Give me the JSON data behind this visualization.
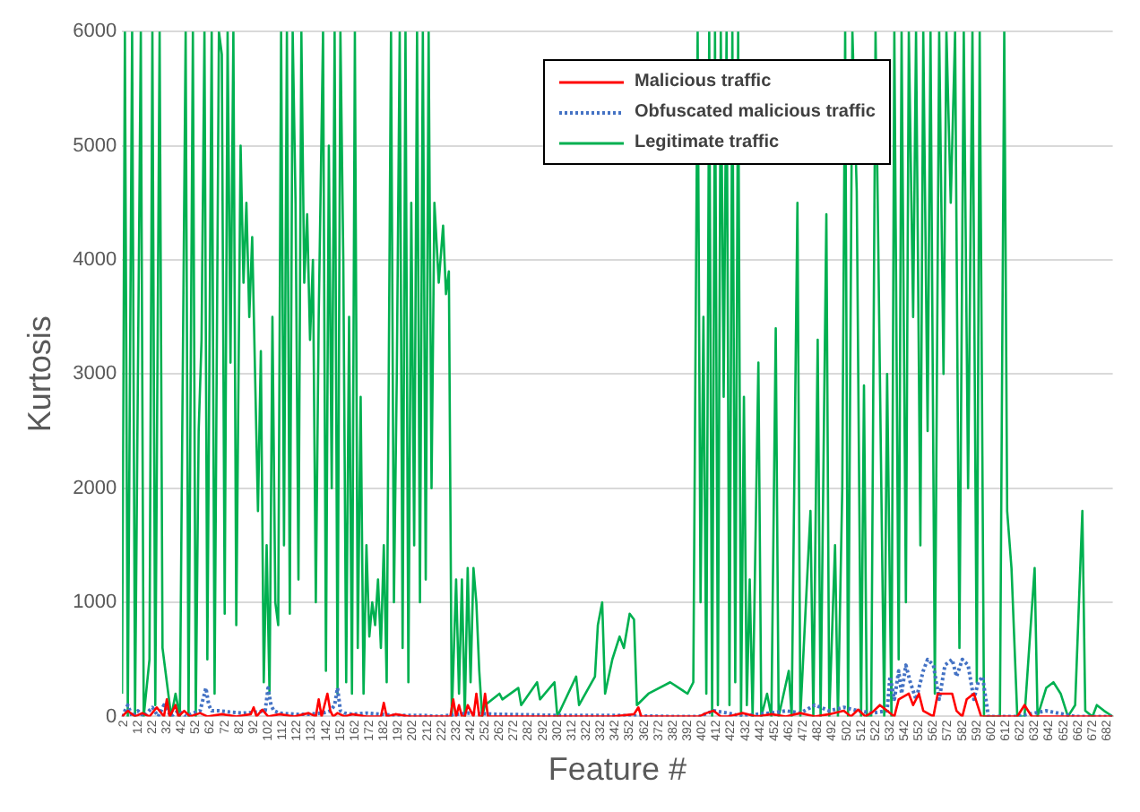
{
  "chart_data": {
    "type": "line",
    "xlabel": "Feature #",
    "ylabel": "Kurtosis",
    "xlim": [
      1,
      686
    ],
    "xticks": [
      2,
      12,
      22,
      32,
      42,
      52,
      62,
      72,
      82,
      92,
      102,
      112,
      122,
      132,
      142,
      152,
      162,
      172,
      182,
      192,
      202,
      212,
      222,
      232,
      242,
      252,
      262,
      272,
      282,
      292,
      302,
      312,
      322,
      332,
      342,
      352,
      362,
      372,
      382,
      392,
      402,
      412,
      422,
      432,
      442,
      452,
      462,
      472,
      482,
      492,
      502,
      512,
      522,
      532,
      542,
      552,
      562,
      572,
      582,
      592,
      602,
      612,
      622,
      632,
      642,
      652,
      662,
      672,
      682
    ],
    "ylim": [
      0,
      6000
    ],
    "yticks": [
      0,
      1000,
      2000,
      3000,
      4000,
      5000,
      6000
    ],
    "grid": "y",
    "legend": "top",
    "marker": "none",
    "series": [
      {
        "name": "Malicious traffic",
        "color": "#ff0000",
        "line_style": "solid",
        "x": [
          1,
          5,
          10,
          15,
          20,
          25,
          30,
          32,
          34,
          38,
          40,
          44,
          48,
          55,
          60,
          70,
          80,
          90,
          92,
          94,
          98,
          102,
          110,
          120,
          130,
          135,
          137,
          139,
          141,
          143,
          145,
          147,
          150,
          155,
          160,
          170,
          180,
          182,
          184,
          190,
          200,
          210,
          220,
          228,
          230,
          232,
          234,
          236,
          238,
          240,
          244,
          246,
          248,
          250,
          252,
          254,
          256,
          260,
          280,
          300,
          330,
          340,
          355,
          358,
          360,
          365,
          400,
          405,
          410,
          415,
          420,
          430,
          440,
          450,
          460,
          470,
          480,
          490,
          500,
          505,
          510,
          515,
          520,
          525,
          530,
          535,
          538,
          545,
          548,
          552,
          555,
          562,
          565,
          575,
          578,
          582,
          585,
          590,
          595,
          600,
          620,
          625,
          630,
          640,
          650,
          660,
          670,
          680,
          686
        ],
        "values": [
          0,
          50,
          0,
          30,
          0,
          80,
          0,
          150,
          0,
          100,
          0,
          50,
          0,
          30,
          0,
          20,
          0,
          20,
          80,
          0,
          60,
          0,
          20,
          0,
          30,
          0,
          150,
          0,
          100,
          200,
          50,
          0,
          30,
          0,
          20,
          0,
          0,
          120,
          0,
          20,
          0,
          0,
          0,
          0,
          150,
          0,
          100,
          0,
          0,
          100,
          0,
          200,
          0,
          0,
          200,
          0,
          0,
          0,
          0,
          0,
          0,
          0,
          20,
          80,
          0,
          0,
          0,
          30,
          50,
          0,
          0,
          30,
          0,
          20,
          0,
          30,
          0,
          20,
          50,
          0,
          60,
          0,
          40,
          100,
          50,
          0,
          150,
          200,
          100,
          200,
          50,
          0,
          200,
          200,
          50,
          0,
          150,
          200,
          0,
          0,
          0,
          100,
          0,
          0,
          0,
          0,
          0,
          0,
          0
        ]
      },
      {
        "name": "Obfuscated malicious traffic",
        "color": "#4472c4",
        "line_style": "dotted",
        "x": [
          1,
          5,
          8,
          12,
          16,
          22,
          26,
          30,
          35,
          40,
          45,
          50,
          55,
          57,
          59,
          61,
          63,
          65,
          68,
          75,
          85,
          95,
          100,
          102,
          104,
          106,
          110,
          120,
          130,
          140,
          145,
          148,
          150,
          152,
          155,
          160,
          170,
          180,
          190,
          200,
          210,
          220,
          240,
          260,
          300,
          340,
          380,
          400,
          410,
          420,
          430,
          440,
          450,
          460,
          470,
          480,
          490,
          500,
          510,
          520,
          530,
          532,
          535,
          538,
          540,
          543,
          546,
          550,
          555,
          558,
          562,
          566,
          570,
          575,
          578,
          582,
          586,
          590,
          593,
          596,
          600,
          620,
          640,
          660,
          680,
          686
        ],
        "values": [
          0,
          100,
          0,
          50,
          0,
          80,
          0,
          100,
          0,
          50,
          0,
          30,
          50,
          150,
          250,
          100,
          50,
          50,
          50,
          40,
          30,
          40,
          50,
          250,
          100,
          50,
          30,
          20,
          20,
          30,
          50,
          100,
          250,
          50,
          30,
          20,
          30,
          20,
          10,
          10,
          10,
          0,
          30,
          20,
          10,
          10,
          0,
          0,
          50,
          30,
          0,
          20,
          30,
          50,
          30,
          100,
          50,
          80,
          50,
          30,
          50,
          350,
          150,
          400,
          200,
          450,
          300,
          150,
          400,
          500,
          450,
          150,
          450,
          500,
          350,
          500,
          450,
          150,
          300,
          350,
          0,
          0,
          50,
          0,
          0,
          0
        ]
      },
      {
        "name": "Legitimate traffic",
        "color": "#00b050",
        "line_style": "solid",
        "x": [
          1,
          3,
          5,
          8,
          10,
          14,
          16,
          20,
          22,
          24,
          27,
          29,
          32,
          35,
          38,
          41,
          45,
          47,
          50,
          52,
          54,
          56,
          58,
          60,
          63,
          65,
          68,
          70,
          72,
          74,
          76,
          78,
          80,
          83,
          85,
          87,
          89,
          91,
          93,
          95,
          97,
          99,
          101,
          103,
          105,
          107,
          109,
          111,
          113,
          115,
          117,
          119,
          121,
          123,
          125,
          127,
          129,
          131,
          133,
          135,
          137,
          140,
          142,
          144,
          146,
          148,
          150,
          152,
          154,
          156,
          158,
          160,
          162,
          164,
          166,
          168,
          170,
          172,
          174,
          176,
          178,
          180,
          182,
          184,
          187,
          189,
          191,
          193,
          195,
          197,
          199,
          201,
          203,
          205,
          207,
          209,
          211,
          213,
          215,
          217,
          220,
          223,
          225,
          227,
          229,
          232,
          234,
          236,
          238,
          240,
          242,
          244,
          246,
          248,
          250,
          252,
          262,
          264,
          275,
          277,
          288,
          290,
          300,
          302,
          315,
          317,
          328,
          330,
          333,
          335,
          340,
          345,
          348,
          352,
          355,
          357,
          365,
          380,
          392,
          396,
          399,
          401,
          403,
          405,
          407,
          409,
          411,
          413,
          415,
          417,
          419,
          421,
          423,
          425,
          427,
          429,
          431,
          433,
          435,
          437,
          441,
          443,
          447,
          450,
          453,
          455,
          462,
          464,
          468,
          470,
          477,
          479,
          482,
          484,
          488,
          490,
          494,
          496,
          499,
          501,
          503,
          506,
          509,
          512,
          514,
          516,
          519,
          522,
          528,
          530,
          533,
          535,
          538,
          540,
          543,
          545,
          548,
          550,
          553,
          555,
          558,
          560,
          563,
          566,
          569,
          571,
          574,
          577,
          580,
          583,
          586,
          589,
          592,
          594,
          597,
          600,
          603,
          606,
          608,
          611,
          613,
          616,
          620,
          625,
          632,
          634,
          640,
          645,
          650,
          655,
          660,
          665,
          667,
          672,
          675,
          680,
          686
        ],
        "values": [
          200,
          6000,
          0,
          6000,
          0,
          6000,
          0,
          500,
          6000,
          100,
          6000,
          600,
          300,
          0,
          200,
          0,
          6000,
          0,
          6000,
          0,
          2500,
          3300,
          6000,
          500,
          6000,
          200,
          6000,
          5800,
          900,
          6000,
          3100,
          6000,
          800,
          5000,
          3800,
          4500,
          3500,
          4200,
          3000,
          1800,
          3200,
          300,
          1500,
          200,
          3500,
          1000,
          800,
          6000,
          1500,
          6000,
          900,
          6000,
          4500,
          1200,
          6000,
          3800,
          4400,
          3300,
          4000,
          1000,
          3500,
          6000,
          400,
          5000,
          2000,
          6000,
          200,
          6000,
          4000,
          300,
          3500,
          200,
          6000,
          600,
          2800,
          200,
          1500,
          700,
          1000,
          800,
          1200,
          600,
          1500,
          300,
          6000,
          1000,
          3000,
          6000,
          600,
          6000,
          300,
          4500,
          1500,
          6000,
          1000,
          6000,
          1200,
          6000,
          2000,
          4500,
          3800,
          4300,
          3700,
          3900,
          0,
          1200,
          200,
          1200,
          0,
          1300,
          300,
          1300,
          1000,
          400,
          0,
          100,
          200,
          150,
          250,
          100,
          300,
          150,
          300,
          0,
          350,
          100,
          350,
          800,
          1000,
          200,
          500,
          700,
          600,
          900,
          850,
          100,
          200,
          300,
          200,
          300,
          6000,
          1000,
          3500,
          200,
          6000,
          0,
          6000,
          100,
          6000,
          2800,
          6000,
          100,
          6000,
          300,
          6000,
          0,
          2800,
          100,
          1200,
          0,
          3100,
          0,
          200,
          0,
          3400,
          0,
          400,
          0,
          4500,
          0,
          1800,
          0,
          3300,
          0,
          4400,
          0,
          1500,
          0,
          2000,
          6000,
          0,
          6000,
          4600,
          0,
          2900,
          0,
          0,
          6000,
          0,
          3000,
          0,
          6000,
          500,
          6000,
          1000,
          6000,
          3500,
          6000,
          1500,
          6000,
          2500,
          6000,
          200,
          6000,
          3000,
          6000,
          4500,
          6000,
          600,
          6000,
          2000,
          6000,
          300,
          6000,
          0,
          0,
          0,
          0,
          0,
          6000,
          1800,
          1300,
          0,
          0,
          1300,
          0,
          250,
          300,
          200,
          0,
          100,
          1800,
          50,
          0,
          100,
          50,
          0
        ]
      }
    ]
  }
}
